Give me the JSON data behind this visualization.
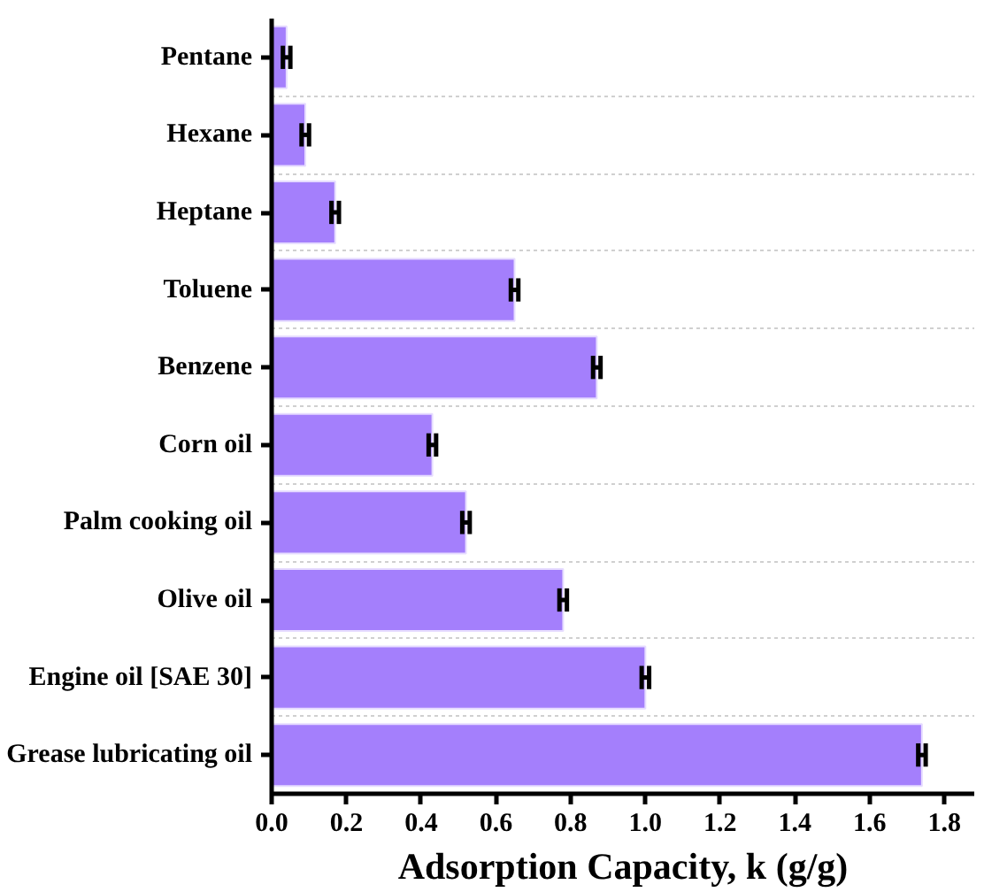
{
  "chart_data": {
    "type": "bar",
    "orientation": "horizontal",
    "xlabel": "Adsorption Capacity, k (g/g)",
    "categories": [
      "Pentane",
      "Hexane",
      "Heptane",
      "Toluene",
      "Benzene",
      "Corn oil",
      "Palm cooking oil",
      "Olive oil",
      "Engine oil [SAE 30]",
      "Grease lubricating oil"
    ],
    "values": [
      0.04,
      0.09,
      0.17,
      0.65,
      0.87,
      0.43,
      0.52,
      0.78,
      1.0,
      1.74
    ],
    "errors": [
      0.01,
      0.01,
      0.01,
      0.01,
      0.01,
      0.01,
      0.01,
      0.01,
      0.01,
      0.01
    ],
    "color": "#a47ffc",
    "xlim": [
      0,
      1.88
    ],
    "xticks": [
      {
        "value": 0,
        "label": "0.0"
      },
      {
        "value": 0.2,
        "label": "0.2"
      },
      {
        "value": 0.4,
        "label": "0.4"
      },
      {
        "value": 0.6,
        "label": "0.6"
      },
      {
        "value": 0.8,
        "label": "0.8"
      },
      {
        "value": 1.0,
        "label": "1.0"
      },
      {
        "value": 1.2,
        "label": "1.2"
      },
      {
        "value": 1.4,
        "label": "1.4"
      },
      {
        "value": 1.6,
        "label": "1.6"
      },
      {
        "value": 1.8,
        "label": "1.8"
      }
    ],
    "grid": "y"
  }
}
